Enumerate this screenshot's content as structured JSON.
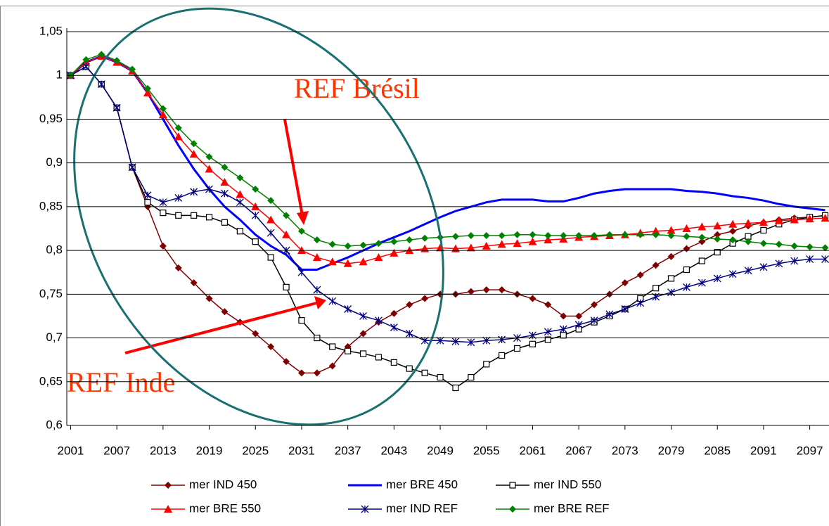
{
  "chart_data": {
    "type": "line",
    "annotations": [
      "REF Brésil",
      "REF Inde"
    ],
    "x": [
      2001,
      2003,
      2005,
      2007,
      2009,
      2011,
      2013,
      2015,
      2017,
      2019,
      2021,
      2023,
      2025,
      2027,
      2029,
      2031,
      2033,
      2035,
      2037,
      2039,
      2041,
      2043,
      2045,
      2047,
      2049,
      2051,
      2053,
      2055,
      2057,
      2059,
      2061,
      2063,
      2065,
      2067,
      2069,
      2071,
      2073,
      2075,
      2077,
      2079,
      2081,
      2083,
      2085,
      2087,
      2089,
      2091,
      2093,
      2095,
      2097,
      2099
    ],
    "xlim": [
      2000.5,
      2099.5
    ],
    "xticks": [
      2001,
      2007,
      2013,
      2019,
      2025,
      2031,
      2037,
      2043,
      2049,
      2055,
      2061,
      2067,
      2073,
      2079,
      2085,
      2091,
      2097
    ],
    "ylim": [
      0.6,
      1.05
    ],
    "yticks": [
      {
        "value": 0.6,
        "label": "0,6"
      },
      {
        "value": 0.65,
        "label": "0,65"
      },
      {
        "value": 0.7,
        "label": "0,7"
      },
      {
        "value": 0.75,
        "label": "0,75"
      },
      {
        "value": 0.8,
        "label": "0,8"
      },
      {
        "value": 0.85,
        "label": "0,85"
      },
      {
        "value": 0.9,
        "label": "0,9"
      },
      {
        "value": 0.95,
        "label": "0,95"
      },
      1,
      {
        "value": 1.05,
        "label": "1,05"
      }
    ],
    "grid": true,
    "series": [
      {
        "name": "mer IND 450",
        "color": "#800000",
        "marker": "diamond",
        "values": [
          1.0,
          1.01,
          0.99,
          0.963,
          0.895,
          0.85,
          0.805,
          0.78,
          0.763,
          0.745,
          0.73,
          0.718,
          0.705,
          0.69,
          0.673,
          0.66,
          0.66,
          0.668,
          0.69,
          0.705,
          0.718,
          0.728,
          0.738,
          0.745,
          0.75,
          0.75,
          0.753,
          0.755,
          0.755,
          0.75,
          0.745,
          0.738,
          0.725,
          0.725,
          0.738,
          0.75,
          0.763,
          0.772,
          0.783,
          0.793,
          0.802,
          0.81,
          0.818,
          0.822,
          0.828,
          0.832,
          0.835,
          0.837,
          0.838,
          0.84
        ]
      },
      {
        "name": "mer BRE 450",
        "color": "#0000ff",
        "marker": "none",
        "values": [
          1.0,
          1.015,
          1.022,
          1.015,
          1.005,
          0.98,
          0.95,
          0.92,
          0.893,
          0.87,
          0.85,
          0.835,
          0.818,
          0.805,
          0.795,
          0.778,
          0.778,
          0.785,
          0.792,
          0.8,
          0.808,
          0.815,
          0.822,
          0.83,
          0.838,
          0.845,
          0.85,
          0.855,
          0.858,
          0.858,
          0.858,
          0.856,
          0.856,
          0.86,
          0.865,
          0.868,
          0.87,
          0.87,
          0.87,
          0.87,
          0.868,
          0.867,
          0.865,
          0.862,
          0.86,
          0.857,
          0.853,
          0.85,
          0.848,
          0.846
        ]
      },
      {
        "name": "mer IND 550",
        "color": "#000000",
        "marker": "square",
        "values": [
          1.0,
          1.01,
          0.99,
          0.963,
          0.895,
          0.855,
          0.843,
          0.84,
          0.84,
          0.838,
          0.832,
          0.822,
          0.81,
          0.792,
          0.758,
          0.72,
          0.7,
          0.69,
          0.685,
          0.682,
          0.678,
          0.672,
          0.665,
          0.66,
          0.655,
          0.643,
          0.655,
          0.67,
          0.68,
          0.688,
          0.693,
          0.698,
          0.703,
          0.71,
          0.718,
          0.725,
          0.733,
          0.745,
          0.757,
          0.768,
          0.778,
          0.788,
          0.798,
          0.808,
          0.816,
          0.823,
          0.83,
          0.835,
          0.838,
          0.84
        ]
      },
      {
        "name": "mer BRE 550",
        "color": "#ff0000",
        "marker": "triangle",
        "values": [
          1.0,
          1.015,
          1.022,
          1.015,
          1.005,
          0.98,
          0.955,
          0.93,
          0.91,
          0.893,
          0.878,
          0.864,
          0.85,
          0.835,
          0.818,
          0.8,
          0.792,
          0.787,
          0.785,
          0.787,
          0.792,
          0.797,
          0.8,
          0.802,
          0.803,
          0.802,
          0.803,
          0.805,
          0.807,
          0.808,
          0.81,
          0.812,
          0.813,
          0.815,
          0.816,
          0.817,
          0.818,
          0.82,
          0.822,
          0.823,
          0.825,
          0.827,
          0.828,
          0.83,
          0.831,
          0.832,
          0.834,
          0.835,
          0.836,
          0.837
        ]
      },
      {
        "name": "mer IND REF",
        "color": "#000080",
        "marker": "star",
        "values": [
          1.0,
          1.01,
          0.99,
          0.963,
          0.895,
          0.863,
          0.855,
          0.86,
          0.867,
          0.87,
          0.865,
          0.855,
          0.84,
          0.82,
          0.8,
          0.775,
          0.755,
          0.742,
          0.733,
          0.725,
          0.72,
          0.712,
          0.705,
          0.697,
          0.697,
          0.696,
          0.695,
          0.697,
          0.698,
          0.7,
          0.703,
          0.707,
          0.71,
          0.715,
          0.72,
          0.727,
          0.733,
          0.74,
          0.747,
          0.752,
          0.758,
          0.763,
          0.768,
          0.773,
          0.777,
          0.781,
          0.785,
          0.788,
          0.79,
          0.79
        ]
      },
      {
        "name": "mer BRE REF",
        "color": "#008000",
        "marker": "diamond",
        "values": [
          1.0,
          1.018,
          1.024,
          1.017,
          1.007,
          0.985,
          0.962,
          0.94,
          0.922,
          0.907,
          0.895,
          0.883,
          0.87,
          0.857,
          0.84,
          0.822,
          0.812,
          0.807,
          0.805,
          0.806,
          0.808,
          0.81,
          0.812,
          0.814,
          0.815,
          0.816,
          0.817,
          0.817,
          0.817,
          0.818,
          0.818,
          0.817,
          0.817,
          0.817,
          0.817,
          0.818,
          0.818,
          0.818,
          0.818,
          0.817,
          0.816,
          0.815,
          0.813,
          0.812,
          0.81,
          0.808,
          0.807,
          0.805,
          0.804,
          0.803
        ]
      }
    ]
  }
}
